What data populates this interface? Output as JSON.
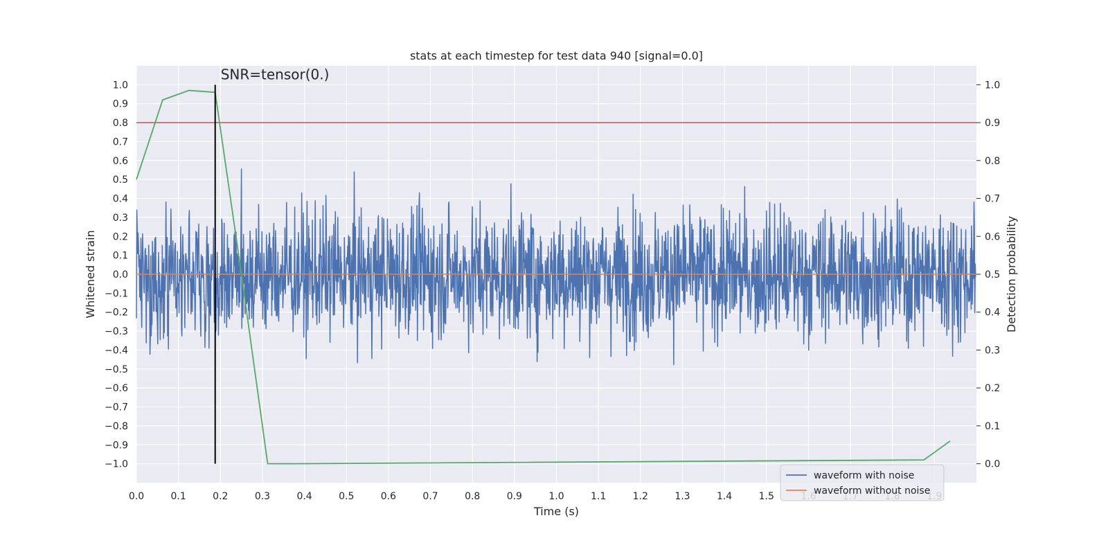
{
  "colors": {
    "background": "#eaeaf2",
    "grid": "#ffffff",
    "noise": "#4c72b0",
    "clean": "#dd8452",
    "prob": "#55a868",
    "threshold": "#c44e52",
    "marker": "#000000"
  },
  "chart_data": {
    "type": "line",
    "title": "stats at each timestep for test data 940 [signal=0.0]",
    "xlabel": "Time (s)",
    "ylabel": "Whitened strain",
    "y2label": "Detection probability",
    "xlim": [
      0.0,
      2.0
    ],
    "ylim": [
      -1.1,
      1.1
    ],
    "y2lim": [
      -0.05,
      1.05
    ],
    "xticks": [
      0.0,
      0.1,
      0.2,
      0.3,
      0.4,
      0.5,
      0.6,
      0.7,
      0.8,
      0.9,
      1.0,
      1.1,
      1.2,
      1.3,
      1.4,
      1.5,
      1.6,
      1.7,
      1.8,
      1.9
    ],
    "xtick_labels": [
      "0.0",
      "0.1",
      "0.2",
      "0.3",
      "0.4",
      "0.5",
      "0.6",
      "0.7",
      "0.8",
      "0.9",
      "1.0",
      "1.1",
      "1.2",
      "1.3",
      "1.4",
      "1.5",
      "1.6",
      "1.7",
      "1.8",
      "1.9"
    ],
    "yticks": [
      1.0,
      0.9,
      0.8,
      0.7,
      0.6,
      0.5,
      0.4,
      0.3,
      0.2,
      0.1,
      0.0,
      -0.1,
      -0.2,
      -0.3,
      -0.4,
      -0.5,
      -0.6,
      -0.7,
      -0.8,
      -0.9,
      -1.0
    ],
    "ytick_labels": [
      "1.0",
      "0.9",
      "0.8",
      "0.7",
      "0.6",
      "0.5",
      "0.4",
      "0.3",
      "0.2",
      "0.1",
      "0.0",
      "−0.1",
      "−0.2",
      "−0.3",
      "−0.4",
      "−0.5",
      "−0.6",
      "−0.7",
      "−0.8",
      "−0.9",
      "−1.0"
    ],
    "y2ticks": [
      1.0,
      0.9,
      0.8,
      0.7,
      0.6,
      0.5,
      0.4,
      0.3,
      0.2,
      0.1,
      0.0
    ],
    "y2tick_labels": [
      "1.0",
      "0.9",
      "0.8",
      "0.7",
      "0.6",
      "0.5",
      "0.4",
      "0.3",
      "0.2",
      "0.1",
      "0.0"
    ],
    "series": [
      {
        "name": "waveform with noise",
        "axis": "left",
        "style": "noise",
        "n_samples": 2048,
        "range": [
          -1.0,
          1.0
        ]
      },
      {
        "name": "waveform without noise",
        "axis": "left",
        "x": [
          0.0,
          2.0
        ],
        "values": [
          0.0,
          0.0
        ]
      },
      {
        "name": "detection probability",
        "axis": "right",
        "x": [
          0.0,
          0.0625,
          0.125,
          0.1875,
          0.25,
          0.3125,
          0.375,
          1.875,
          1.9375
        ],
        "values": [
          0.75,
          0.96,
          0.985,
          0.98,
          0.5,
          0.0,
          0.0,
          0.01,
          0.06
        ]
      }
    ],
    "threshold": {
      "axis": "right",
      "value": 0.9
    },
    "marker": {
      "x": 0.1875,
      "ymin": -1.0,
      "ymax": 1.0,
      "label": "SNR=tensor(0.)"
    },
    "legend": {
      "position": "lower-right",
      "entries": [
        {
          "label": "waveform with noise",
          "color_key": "noise"
        },
        {
          "label": "waveform without noise",
          "color_key": "clean"
        }
      ]
    }
  }
}
